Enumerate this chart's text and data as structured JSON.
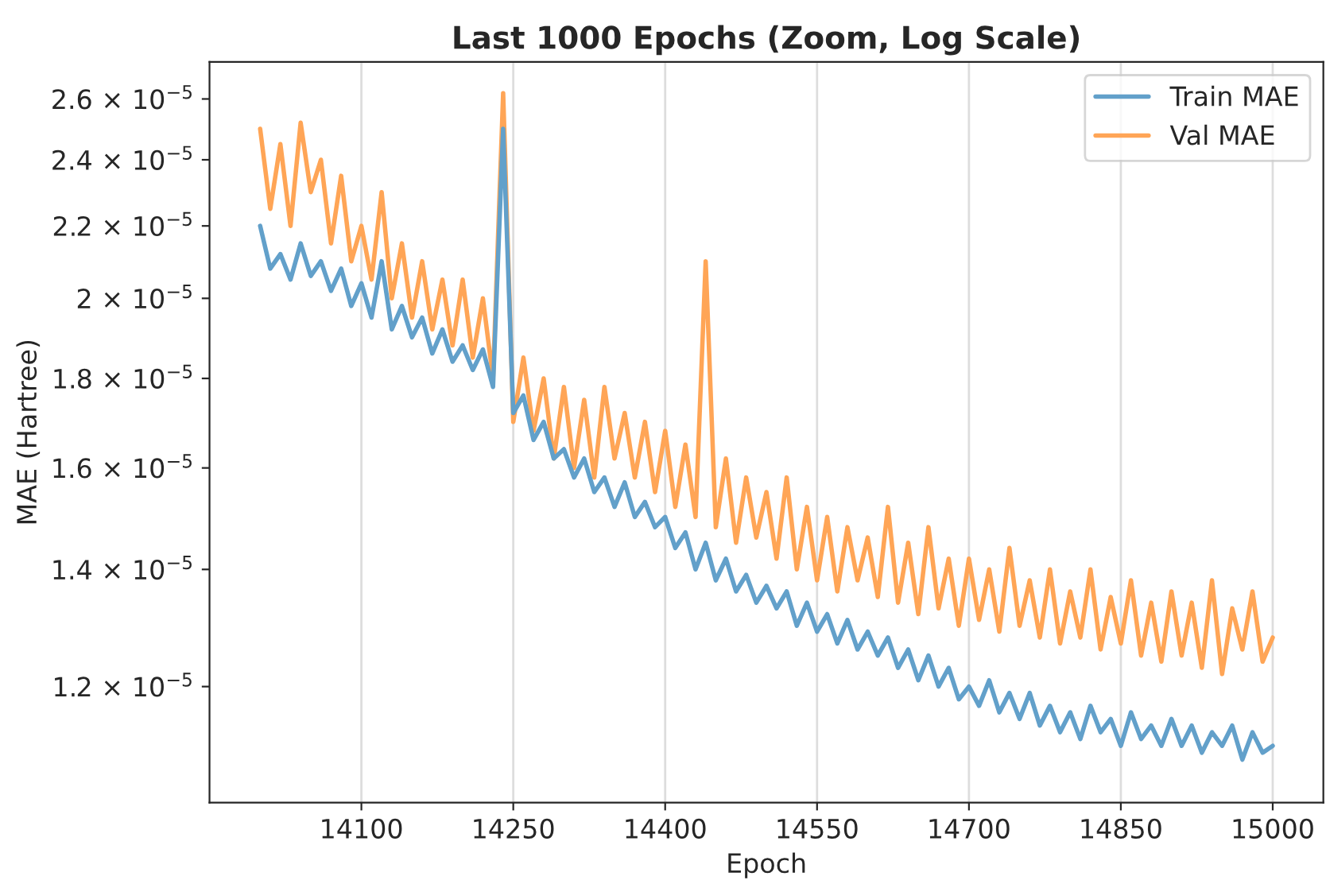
{
  "chart_data": {
    "type": "line",
    "title": "Last 1000 Epochs (Zoom, Log Scale)",
    "xlabel": "Epoch",
    "ylabel": "MAE (Hartree)",
    "x": [
      14000,
      14010,
      14020,
      14030,
      14040,
      14050,
      14060,
      14070,
      14080,
      14090,
      14100,
      14110,
      14120,
      14130,
      14140,
      14150,
      14160,
      14170,
      14180,
      14190,
      14200,
      14210,
      14220,
      14230,
      14240,
      14250,
      14260,
      14270,
      14280,
      14290,
      14300,
      14310,
      14320,
      14330,
      14340,
      14350,
      14360,
      14370,
      14380,
      14390,
      14400,
      14410,
      14420,
      14430,
      14440,
      14450,
      14460,
      14470,
      14480,
      14490,
      14500,
      14510,
      14520,
      14530,
      14540,
      14550,
      14560,
      14570,
      14580,
      14590,
      14600,
      14610,
      14620,
      14630,
      14640,
      14650,
      14660,
      14670,
      14680,
      14690,
      14700,
      14710,
      14720,
      14730,
      14740,
      14750,
      14760,
      14770,
      14780,
      14790,
      14800,
      14810,
      14820,
      14830,
      14840,
      14850,
      14860,
      14870,
      14880,
      14890,
      14900,
      14910,
      14920,
      14930,
      14940,
      14950,
      14960,
      14970,
      14980,
      14990,
      15000
    ],
    "series": [
      {
        "name": "Train MAE",
        "color": "#62a0ca",
        "values": [
          2.2e-05,
          2.08e-05,
          2.12e-05,
          2.05e-05,
          2.15e-05,
          2.06e-05,
          2.1e-05,
          2.02e-05,
          2.08e-05,
          1.98e-05,
          2.04e-05,
          1.95e-05,
          2.1e-05,
          1.92e-05,
          1.98e-05,
          1.9e-05,
          1.95e-05,
          1.86e-05,
          1.92e-05,
          1.84e-05,
          1.88e-05,
          1.82e-05,
          1.87e-05,
          1.78e-05,
          2.5e-05,
          1.72e-05,
          1.76e-05,
          1.66e-05,
          1.7e-05,
          1.62e-05,
          1.64e-05,
          1.58e-05,
          1.62e-05,
          1.55e-05,
          1.58e-05,
          1.52e-05,
          1.57e-05,
          1.5e-05,
          1.53e-05,
          1.48e-05,
          1.5e-05,
          1.44e-05,
          1.47e-05,
          1.4e-05,
          1.45e-05,
          1.38e-05,
          1.42e-05,
          1.36e-05,
          1.39e-05,
          1.34e-05,
          1.37e-05,
          1.33e-05,
          1.36e-05,
          1.3e-05,
          1.34e-05,
          1.29e-05,
          1.32e-05,
          1.27e-05,
          1.31e-05,
          1.26e-05,
          1.29e-05,
          1.25e-05,
          1.28e-05,
          1.23e-05,
          1.26e-05,
          1.21e-05,
          1.25e-05,
          1.2e-05,
          1.23e-05,
          1.18e-05,
          1.2e-05,
          1.17e-05,
          1.21e-05,
          1.16e-05,
          1.19e-05,
          1.15e-05,
          1.19e-05,
          1.14e-05,
          1.17e-05,
          1.13e-05,
          1.16e-05,
          1.12e-05,
          1.17e-05,
          1.13e-05,
          1.15e-05,
          1.11e-05,
          1.16e-05,
          1.12e-05,
          1.14e-05,
          1.11e-05,
          1.15e-05,
          1.11e-05,
          1.14e-05,
          1.1e-05,
          1.13e-05,
          1.11e-05,
          1.14e-05,
          1.09e-05,
          1.13e-05,
          1.1e-05,
          1.11e-05
        ]
      },
      {
        "name": "Val MAE",
        "color": "#ffa556",
        "values": [
          2.5e-05,
          2.25e-05,
          2.45e-05,
          2.2e-05,
          2.52e-05,
          2.3e-05,
          2.4e-05,
          2.15e-05,
          2.35e-05,
          2.1e-05,
          2.2e-05,
          2.05e-05,
          2.3e-05,
          2e-05,
          2.15e-05,
          1.95e-05,
          2.1e-05,
          1.92e-05,
          2.05e-05,
          1.88e-05,
          2.05e-05,
          1.85e-05,
          2e-05,
          1.8e-05,
          2.62e-05,
          1.7e-05,
          1.85e-05,
          1.68e-05,
          1.8e-05,
          1.62e-05,
          1.78e-05,
          1.6e-05,
          1.75e-05,
          1.58e-05,
          1.78e-05,
          1.62e-05,
          1.72e-05,
          1.58e-05,
          1.7e-05,
          1.55e-05,
          1.68e-05,
          1.52e-05,
          1.65e-05,
          1.5e-05,
          2.1e-05,
          1.48e-05,
          1.62e-05,
          1.45e-05,
          1.58e-05,
          1.46e-05,
          1.55e-05,
          1.42e-05,
          1.58e-05,
          1.4e-05,
          1.52e-05,
          1.38e-05,
          1.5e-05,
          1.36e-05,
          1.48e-05,
          1.38e-05,
          1.46e-05,
          1.35e-05,
          1.52e-05,
          1.34e-05,
          1.45e-05,
          1.32e-05,
          1.48e-05,
          1.33e-05,
          1.42e-05,
          1.3e-05,
          1.42e-05,
          1.31e-05,
          1.4e-05,
          1.29e-05,
          1.44e-05,
          1.3e-05,
          1.38e-05,
          1.28e-05,
          1.4e-05,
          1.27e-05,
          1.36e-05,
          1.28e-05,
          1.4e-05,
          1.26e-05,
          1.35e-05,
          1.27e-05,
          1.38e-05,
          1.25e-05,
          1.34e-05,
          1.24e-05,
          1.36e-05,
          1.25e-05,
          1.34e-05,
          1.23e-05,
          1.38e-05,
          1.22e-05,
          1.33e-05,
          1.26e-05,
          1.36e-05,
          1.24e-05,
          1.28e-05
        ]
      }
    ],
    "log": "y",
    "xlim": [
      13950,
      15050
    ],
    "ylim": [
      1.03e-05,
      2.73e-05
    ],
    "xticks": [
      14100,
      14250,
      14400,
      14550,
      14700,
      14850,
      15000
    ],
    "yticks": [
      {
        "value": 1.2e-05,
        "label": "1.2 × 10$^{−5}$"
      },
      {
        "value": 1.4e-05,
        "label": "1.4 × 10$^{−5}$"
      },
      {
        "value": 1.6e-05,
        "label": "1.6 × 10$^{−5}$"
      },
      {
        "value": 1.8e-05,
        "label": "1.8 × 10$^{−5}$"
      },
      {
        "value": 2e-05,
        "label": "2 × 10$^{−5}$"
      },
      {
        "value": 2.2e-05,
        "label": "2.2 × 10$^{−5}$"
      },
      {
        "value": 2.4e-05,
        "label": "2.4 × 10$^{−5}$"
      },
      {
        "value": 2.6e-05,
        "label": "2.6 × 10$^{−5}$"
      }
    ],
    "grid": "x",
    "legend": "top right",
    "line_style": "solid",
    "marker": "none"
  }
}
